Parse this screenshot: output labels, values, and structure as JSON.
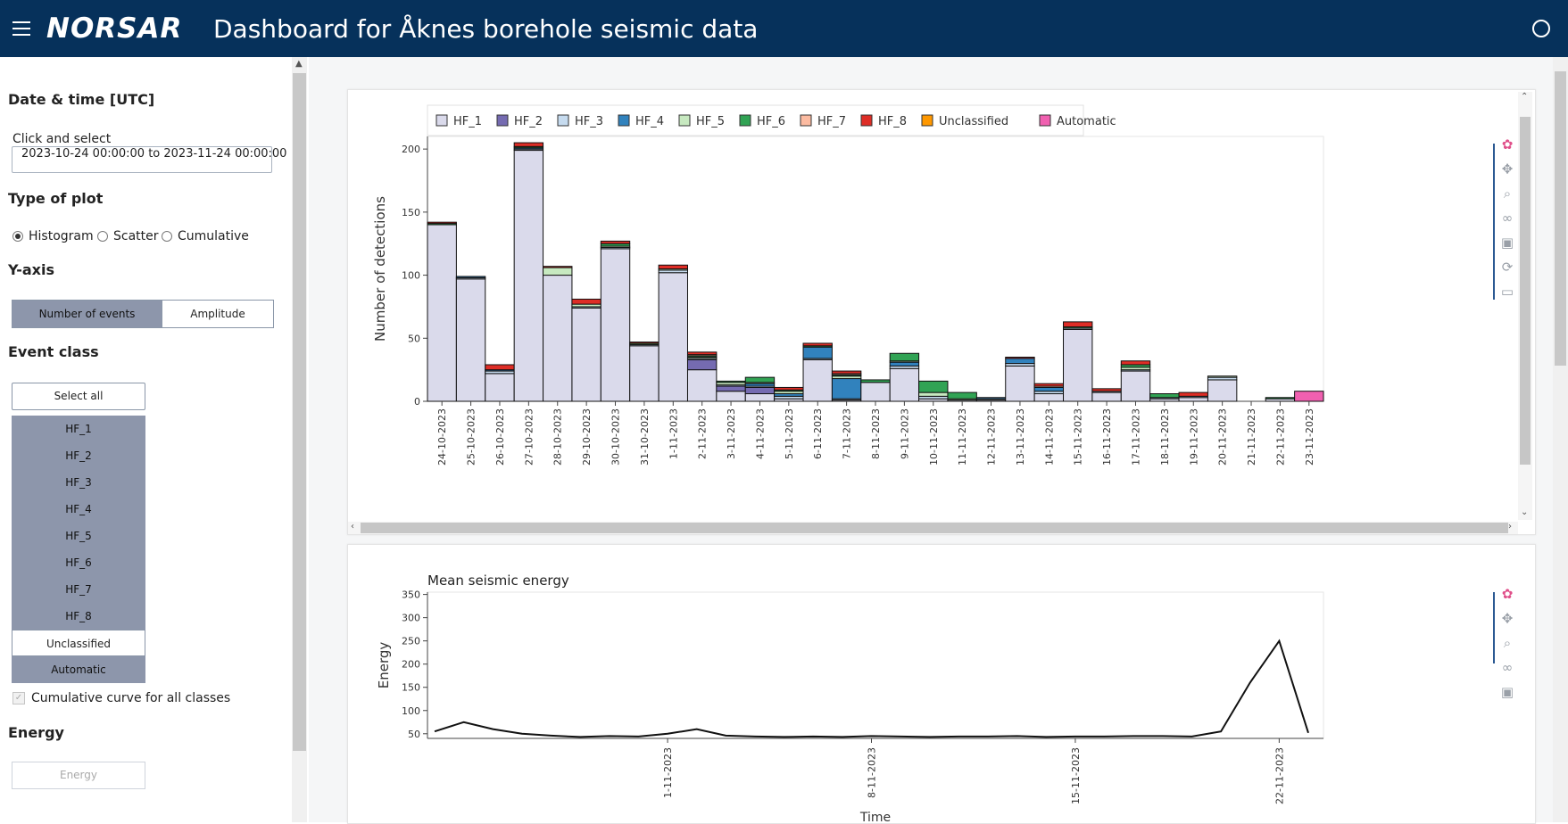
{
  "header": {
    "logo_text": "NORSAR",
    "title": "Dashboard for Åknes borehole seismic data"
  },
  "sidebar": {
    "date_section": "Date & time [UTC]",
    "date_label": "Click and select",
    "date_value": "2023-10-24 00:00:00 to 2023-11-24 00:00:00",
    "plot_type_section": "Type of plot",
    "plot_types": [
      {
        "label": "Histogram",
        "selected": true
      },
      {
        "label": "Scatter",
        "selected": false
      },
      {
        "label": "Cumulative",
        "selected": false
      }
    ],
    "yaxis_section": "Y-axis",
    "yaxis_options": [
      {
        "label": "Number of events",
        "selected": true
      },
      {
        "label": "Amplitude",
        "selected": false
      }
    ],
    "event_class_section": "Event class",
    "select_all_label": "Select all",
    "classes": [
      {
        "label": "HF_1",
        "selected": true
      },
      {
        "label": "HF_2",
        "selected": true
      },
      {
        "label": "HF_3",
        "selected": true
      },
      {
        "label": "HF_4",
        "selected": true
      },
      {
        "label": "HF_5",
        "selected": true
      },
      {
        "label": "HF_6",
        "selected": true
      },
      {
        "label": "HF_7",
        "selected": true
      },
      {
        "label": "HF_8",
        "selected": true
      },
      {
        "label": "Unclassified",
        "selected": false
      },
      {
        "label": "Automatic",
        "selected": true
      }
    ],
    "cumulative_label": "Cumulative curve for all classes",
    "energy_section": "Energy",
    "energy_button": "Energy"
  },
  "chart_data": [
    {
      "type": "bar",
      "stacked": true,
      "ylabel": "Number of detections",
      "ylim": [
        0,
        210
      ],
      "yticks": [
        0,
        50,
        100,
        150,
        200
      ],
      "legend_position": "top-left",
      "categories": [
        "24-10-2023",
        "25-10-2023",
        "26-10-2023",
        "27-10-2023",
        "28-10-2023",
        "29-10-2023",
        "30-10-2023",
        "31-10-2023",
        "1-11-2023",
        "2-11-2023",
        "3-11-2023",
        "4-11-2023",
        "5-11-2023",
        "6-11-2023",
        "7-11-2023",
        "8-11-2023",
        "9-11-2023",
        "10-11-2023",
        "11-11-2023",
        "12-11-2023",
        "13-11-2023",
        "14-11-2023",
        "15-11-2023",
        "16-11-2023",
        "17-11-2023",
        "18-11-2023",
        "19-11-2023",
        "20-11-2023",
        "21-11-2023",
        "22-11-2023",
        "23-11-2023"
      ],
      "series": [
        {
          "name": "HF_1",
          "color": "#dadaeb",
          "values": [
            140,
            97,
            22,
            199,
            100,
            74,
            121,
            44,
            102,
            25,
            8,
            6,
            2,
            33,
            1,
            15,
            26,
            2,
            1,
            1,
            28,
            6,
            57,
            7,
            24,
            2,
            3,
            17,
            0,
            2,
            0
          ]
        },
        {
          "name": "HF_2",
          "color": "#756bb1",
          "values": [
            0,
            0,
            0,
            0,
            0,
            0,
            0,
            0,
            0,
            8,
            4,
            5,
            0,
            0,
            0,
            0,
            0,
            0,
            0,
            0,
            0,
            0,
            0,
            0,
            0,
            0,
            0,
            0,
            0,
            0,
            0
          ]
        },
        {
          "name": "HF_3",
          "color": "#c6dbef",
          "values": [
            0,
            1,
            2,
            1,
            0,
            1,
            1,
            1,
            2,
            1,
            1,
            1,
            2,
            1,
            1,
            0,
            2,
            2,
            0,
            1,
            2,
            2,
            1,
            1,
            1,
            1,
            1,
            2,
            0,
            0,
            0
          ]
        },
        {
          "name": "HF_4",
          "color": "#3182bd",
          "values": [
            0,
            1,
            1,
            1,
            0,
            0,
            0,
            0,
            0,
            0,
            0,
            2,
            2,
            9,
            16,
            0,
            3,
            0,
            0,
            1,
            4,
            3,
            0,
            0,
            0,
            0,
            0,
            0,
            0,
            0,
            0
          ]
        },
        {
          "name": "HF_5",
          "color": "#c7e9c0",
          "values": [
            0,
            0,
            0,
            0,
            6,
            2,
            1,
            0,
            1,
            1,
            2,
            1,
            2,
            0,
            2,
            0,
            1,
            3,
            1,
            0,
            0,
            0,
            0,
            0,
            2,
            0,
            0,
            1,
            0,
            0,
            0
          ]
        },
        {
          "name": "HF_6",
          "color": "#31a354",
          "values": [
            1,
            0,
            0,
            1,
            0,
            0,
            2,
            1,
            0,
            1,
            1,
            4,
            1,
            1,
            1,
            2,
            6,
            9,
            5,
            0,
            0,
            0,
            1,
            0,
            2,
            3,
            0,
            0,
            0,
            1,
            0
          ]
        },
        {
          "name": "HF_7",
          "color": "#fcbba1",
          "values": [
            0,
            0,
            0,
            0,
            0,
            0,
            0,
            0,
            0,
            1,
            0,
            0,
            0,
            0,
            1,
            0,
            0,
            0,
            0,
            0,
            0,
            1,
            0,
            0,
            0,
            0,
            0,
            0,
            0,
            0,
            0
          ]
        },
        {
          "name": "HF_8",
          "color": "#de2d26",
          "values": [
            1,
            0,
            4,
            3,
            1,
            4,
            2,
            1,
            3,
            2,
            0,
            0,
            2,
            2,
            2,
            0,
            0,
            0,
            0,
            0,
            1,
            2,
            4,
            2,
            3,
            0,
            3,
            0,
            0,
            0,
            0
          ]
        },
        {
          "name": "Unclassified",
          "color": "#ff9800",
          "values": [
            0,
            0,
            0,
            0,
            0,
            0,
            0,
            0,
            0,
            0,
            0,
            0,
            0,
            0,
            0,
            0,
            0,
            0,
            0,
            0,
            0,
            0,
            0,
            0,
            0,
            0,
            0,
            0,
            0,
            0,
            0
          ]
        },
        {
          "name": "Automatic",
          "color": "#f060b0",
          "values": [
            0,
            0,
            0,
            0,
            0,
            0,
            0,
            0,
            0,
            0,
            0,
            0,
            0,
            0,
            0,
            0,
            0,
            0,
            0,
            0,
            0,
            0,
            0,
            0,
            0,
            0,
            0,
            0,
            0,
            0,
            8
          ]
        }
      ]
    },
    {
      "type": "line",
      "title": "Mean seismic energy",
      "ylabel": "Energy",
      "xlabel": "Time",
      "ylim": [
        40,
        355
      ],
      "yticks": [
        50,
        100,
        150,
        200,
        250,
        300,
        350
      ],
      "xticks": [
        "1-11-2023",
        "8-11-2023",
        "15-11-2023",
        "22-11-2023"
      ],
      "x": [
        "24-10-2023",
        "25-10-2023",
        "26-10-2023",
        "27-10-2023",
        "28-10-2023",
        "29-10-2023",
        "30-10-2023",
        "31-10-2023",
        "1-11-2023",
        "2-11-2023",
        "3-11-2023",
        "4-11-2023",
        "5-11-2023",
        "6-11-2023",
        "7-11-2023",
        "8-11-2023",
        "9-11-2023",
        "10-11-2023",
        "11-11-2023",
        "12-11-2023",
        "13-11-2023",
        "14-11-2023",
        "15-11-2023",
        "16-11-2023",
        "17-11-2023",
        "18-11-2023",
        "19-11-2023",
        "20-11-2023",
        "21-11-2023",
        "22-11-2023",
        "23-11-2023"
      ],
      "values": [
        55,
        75,
        60,
        50,
        46,
        43,
        45,
        44,
        50,
        60,
        46,
        44,
        43,
        44,
        43,
        45,
        44,
        43,
        44,
        44,
        45,
        43,
        44,
        44,
        45,
        45,
        44,
        55,
        160,
        250,
        52
      ]
    }
  ]
}
